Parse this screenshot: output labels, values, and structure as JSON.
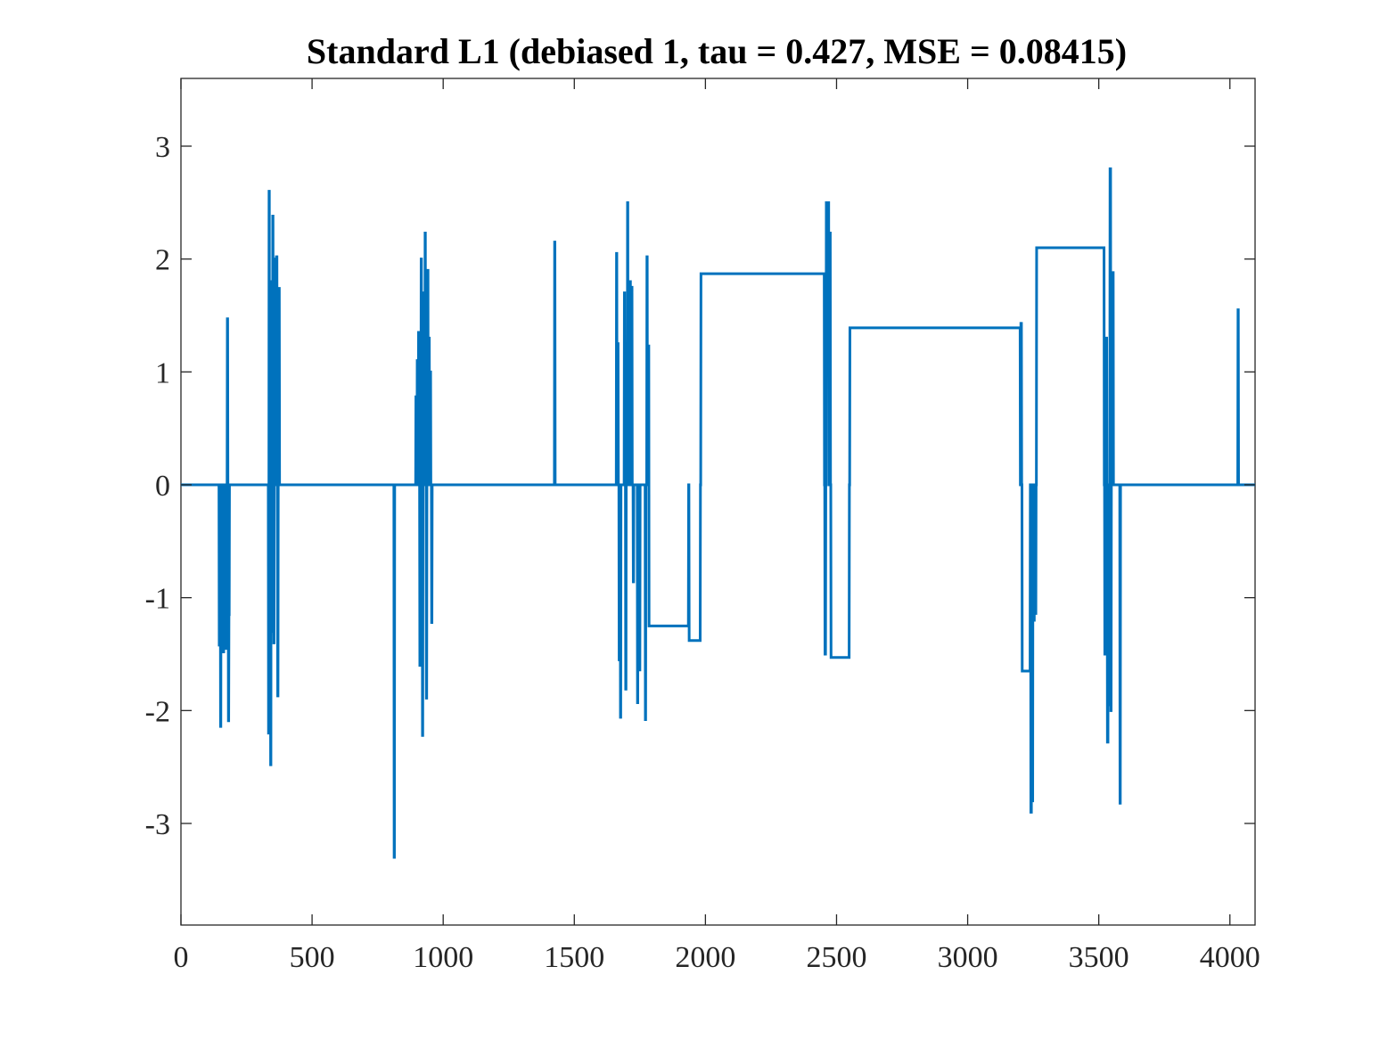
{
  "chart_data": {
    "type": "line",
    "title": "Standard L1 (debiased 1, tau = 0.427, MSE = 0.08415)",
    "xlabel": "",
    "ylabel": "",
    "xlim": [
      0,
      4096
    ],
    "ylim": [
      -3.9,
      3.6
    ],
    "x_ticks": [
      0,
      500,
      1000,
      1500,
      2000,
      2500,
      3000,
      3500,
      4000
    ],
    "x_tick_labels": [
      "0",
      "500",
      "1000",
      "1500",
      "2000",
      "2500",
      "3000",
      "3500",
      "4000"
    ],
    "y_ticks": [
      3,
      2,
      1,
      0,
      -1,
      -2,
      -3
    ],
    "y_tick_labels": [
      "3",
      "2",
      "1",
      "0",
      "-1",
      "-2",
      "-3"
    ],
    "grid": false,
    "color": "#0072BD",
    "series": [
      {
        "x": [
          0,
          145,
          146,
          147,
          148,
          150,
          151,
          152,
          153,
          154,
          155,
          157,
          158,
          160,
          161,
          163,
          164,
          166,
          167,
          170,
          171,
          172,
          173,
          174,
          175,
          176,
          177,
          178,
          179,
          180,
          181,
          182,
          183,
          184,
          185,
          333,
          334,
          335,
          336,
          337,
          338,
          339,
          340,
          341,
          342,
          343,
          344,
          345,
          346,
          347,
          348,
          349,
          350,
          351,
          352,
          353,
          354,
          355,
          356,
          357,
          358,
          360,
          361,
          363,
          364,
          366,
          367,
          368,
          369,
          370,
          371,
          373,
          374,
          375,
          376,
          812,
          813,
          814,
          815,
          895,
          896,
          897,
          898,
          900,
          901,
          902,
          903,
          905,
          906,
          907,
          908,
          910,
          911,
          912,
          913,
          915,
          916,
          917,
          918,
          920,
          921,
          922,
          923,
          925,
          926,
          927,
          928,
          930,
          931,
          932,
          933,
          935,
          936,
          937,
          938,
          940,
          941,
          942,
          943,
          945,
          946,
          947,
          948,
          950,
          951,
          952,
          953,
          955,
          956,
          957,
          958,
          1424,
          1425,
          1426,
          1427,
          1660,
          1661,
          1662,
          1663,
          1665,
          1666,
          1667,
          1668,
          1670,
          1671,
          1672,
          1673,
          1675,
          1676,
          1677,
          1678,
          1690,
          1691,
          1692,
          1693,
          1695,
          1696,
          1697,
          1698,
          1702,
          1703,
          1704,
          1705,
          1712,
          1713,
          1714,
          1715,
          1718,
          1719,
          1720,
          1721,
          1724,
          1725,
          1726,
          1727,
          1740,
          1741,
          1742,
          1743,
          1748,
          1749,
          1750,
          1751,
          1770,
          1771,
          1772,
          1773,
          1776,
          1777,
          1778,
          1779,
          1782,
          1783,
          1784,
          1785,
          1935,
          1936,
          1937,
          1938,
          1980,
          1981,
          1982,
          1983,
          2453,
          2454,
          2455,
          2456,
          2458,
          2459,
          2460,
          2461,
          2470,
          2471,
          2472,
          2473,
          2476,
          2477,
          2478,
          2479,
          2548,
          2549,
          2550,
          2551,
          3200,
          3201,
          3202,
          3203,
          3205,
          3206,
          3207,
          3208,
          3238,
          3239,
          3240,
          3241,
          3243,
          3244,
          3245,
          3246,
          3248,
          3249,
          3250,
          3251,
          3254,
          3255,
          3256,
          3257,
          3260,
          3261,
          3262,
          3263,
          3520,
          3521,
          3522,
          3523,
          3525,
          3526,
          3527,
          3528,
          3530,
          3531,
          3532,
          3533,
          3535,
          3536,
          3537,
          3538,
          3540,
          3541,
          3542,
          3543,
          3545,
          3546,
          3547,
          3548,
          3553,
          3554,
          3555,
          3556,
          3580,
          3581,
          3582,
          3583,
          4030,
          4031,
          4032,
          4033,
          4096
        ],
        "y": [
          0,
          0,
          -1.42,
          -1.42,
          0,
          0,
          -2.14,
          -2.14,
          0,
          0,
          -1.4,
          -1.4,
          0,
          0,
          -1.48,
          -1.48,
          0,
          0,
          -1.35,
          -1.35,
          0,
          0,
          -1.45,
          -1.45,
          0,
          0,
          1.47,
          1.47,
          0,
          0,
          -2.09,
          -2.09,
          -1.15,
          -1.15,
          0,
          0,
          -2.2,
          -2.2,
          2.6,
          2.6,
          -2.2,
          -2.2,
          0,
          0,
          -2.48,
          -2.48,
          1.8,
          1.8,
          0,
          0,
          -1.3,
          -1.3,
          2.38,
          2.38,
          0,
          0,
          -1.4,
          -1.4,
          0,
          0,
          2.0,
          2.0,
          0,
          0,
          2.02,
          2.02,
          0,
          0,
          -1.87,
          -1.87,
          0,
          0,
          1.74,
          1.74,
          0,
          0,
          -3.3,
          -3.3,
          0,
          0,
          0.78,
          0.78,
          0,
          0,
          1.1,
          1.1,
          0,
          0,
          1.35,
          1.35,
          0,
          0,
          -1.6,
          -1.6,
          0,
          0,
          2.0,
          2.0,
          0,
          0,
          -2.22,
          -2.22,
          0,
          0,
          1.7,
          1.7,
          0,
          0,
          2.23,
          2.23,
          0,
          0,
          -1.89,
          -1.89,
          0,
          0,
          1.9,
          1.9,
          0,
          0,
          1.3,
          1.3,
          0,
          0,
          1.0,
          1.0,
          0,
          0,
          -1.22,
          -1.22,
          0,
          0,
          2.15,
          2.15,
          0,
          0,
          2.05,
          2.05,
          0,
          0,
          1.25,
          1.25,
          0,
          0,
          -1.55,
          -1.55,
          0,
          0,
          -2.06,
          -2.06,
          0,
          0,
          1.7,
          1.7,
          0,
          0,
          -1.81,
          -1.81,
          0,
          0,
          2.5,
          2.5,
          0,
          0,
          1.8,
          1.8,
          0,
          0,
          1.75,
          1.75,
          0,
          0,
          -0.86,
          -0.86,
          0,
          0,
          -1.93,
          -1.93,
          0,
          0,
          -1.64,
          -1.64,
          0,
          0,
          -2.08,
          -2.08,
          0,
          0,
          2.02,
          2.02,
          0,
          0,
          1.23,
          1.23,
          -1.25,
          -1.25,
          0,
          0,
          -1.38,
          -1.38,
          0,
          0,
          1.87,
          1.87,
          0,
          0,
          -1.5,
          -1.5,
          0,
          0,
          2.5,
          2.5,
          0,
          0,
          2.23,
          2.23,
          0,
          0,
          -1.53,
          -1.53,
          0,
          0,
          1.39,
          1.39,
          0,
          0,
          1.43,
          1.43,
          0,
          0,
          -1.65,
          -1.65,
          0,
          0,
          -2.9,
          -2.9,
          0,
          0,
          -2.8,
          -2.8,
          0,
          0,
          -1.2,
          -1.2,
          0,
          0,
          -1.14,
          -1.14,
          0,
          0,
          2.1,
          2.1,
          0,
          0,
          -1.5,
          -1.5,
          0,
          0,
          1.3,
          1.3,
          0,
          0,
          -2.28,
          -2.28,
          0,
          0,
          -1.95,
          -1.95,
          0,
          0,
          2.8,
          2.8,
          -2.0,
          -2.0,
          0,
          0,
          1.88,
          1.88,
          0,
          0,
          -2.82,
          -2.82,
          0,
          0,
          1.55,
          1.55,
          0,
          0
        ]
      }
    ]
  }
}
